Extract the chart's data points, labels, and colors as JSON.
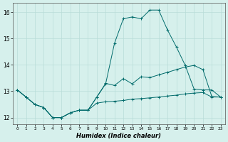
{
  "xlabel": "Humidex (Indice chaleur)",
  "bg_color": "#d6f0ec",
  "grid_color": "#b8ddd8",
  "line_color": "#006b6b",
  "xlim": [
    -0.5,
    23.5
  ],
  "ylim": [
    11.75,
    16.35
  ],
  "yticks": [
    12,
    13,
    14,
    15,
    16
  ],
  "xticks": [
    0,
    1,
    2,
    3,
    4,
    5,
    6,
    7,
    8,
    9,
    10,
    11,
    12,
    13,
    14,
    15,
    16,
    17,
    18,
    19,
    20,
    21,
    22,
    23
  ],
  "line1_x": [
    0,
    1,
    2,
    3,
    4,
    5,
    6,
    7,
    8,
    9,
    10,
    11,
    12,
    13,
    14,
    15,
    16,
    17,
    18,
    19,
    20,
    21,
    22,
    23
  ],
  "line1_y": [
    13.05,
    12.78,
    12.5,
    12.38,
    12.0,
    12.0,
    12.18,
    12.28,
    12.28,
    12.55,
    12.6,
    12.62,
    12.65,
    12.7,
    12.72,
    12.75,
    12.78,
    12.82,
    12.85,
    12.9,
    12.93,
    12.95,
    12.78,
    12.78
  ],
  "line2_x": [
    0,
    1,
    2,
    3,
    4,
    5,
    6,
    7,
    8,
    9,
    10,
    11,
    12,
    13,
    14,
    15,
    16,
    17,
    18,
    19,
    20,
    21,
    22,
    23
  ],
  "line2_y": [
    13.05,
    12.78,
    12.5,
    12.38,
    12.0,
    12.0,
    12.18,
    12.28,
    12.28,
    12.78,
    13.3,
    13.22,
    13.48,
    13.28,
    13.55,
    13.52,
    13.62,
    13.72,
    13.82,
    13.92,
    13.98,
    13.82,
    12.8,
    12.78
  ],
  "line3_x": [
    0,
    1,
    2,
    3,
    4,
    5,
    6,
    7,
    8,
    9,
    10,
    11,
    12,
    13,
    14,
    15,
    16,
    17,
    18,
    19,
    20,
    21,
    22,
    23
  ],
  "line3_y": [
    13.05,
    12.78,
    12.5,
    12.38,
    12.0,
    12.0,
    12.18,
    12.28,
    12.28,
    12.78,
    13.28,
    14.82,
    15.75,
    15.82,
    15.75,
    16.08,
    16.08,
    15.32,
    14.68,
    13.98,
    13.08,
    13.05,
    13.05,
    12.78
  ]
}
